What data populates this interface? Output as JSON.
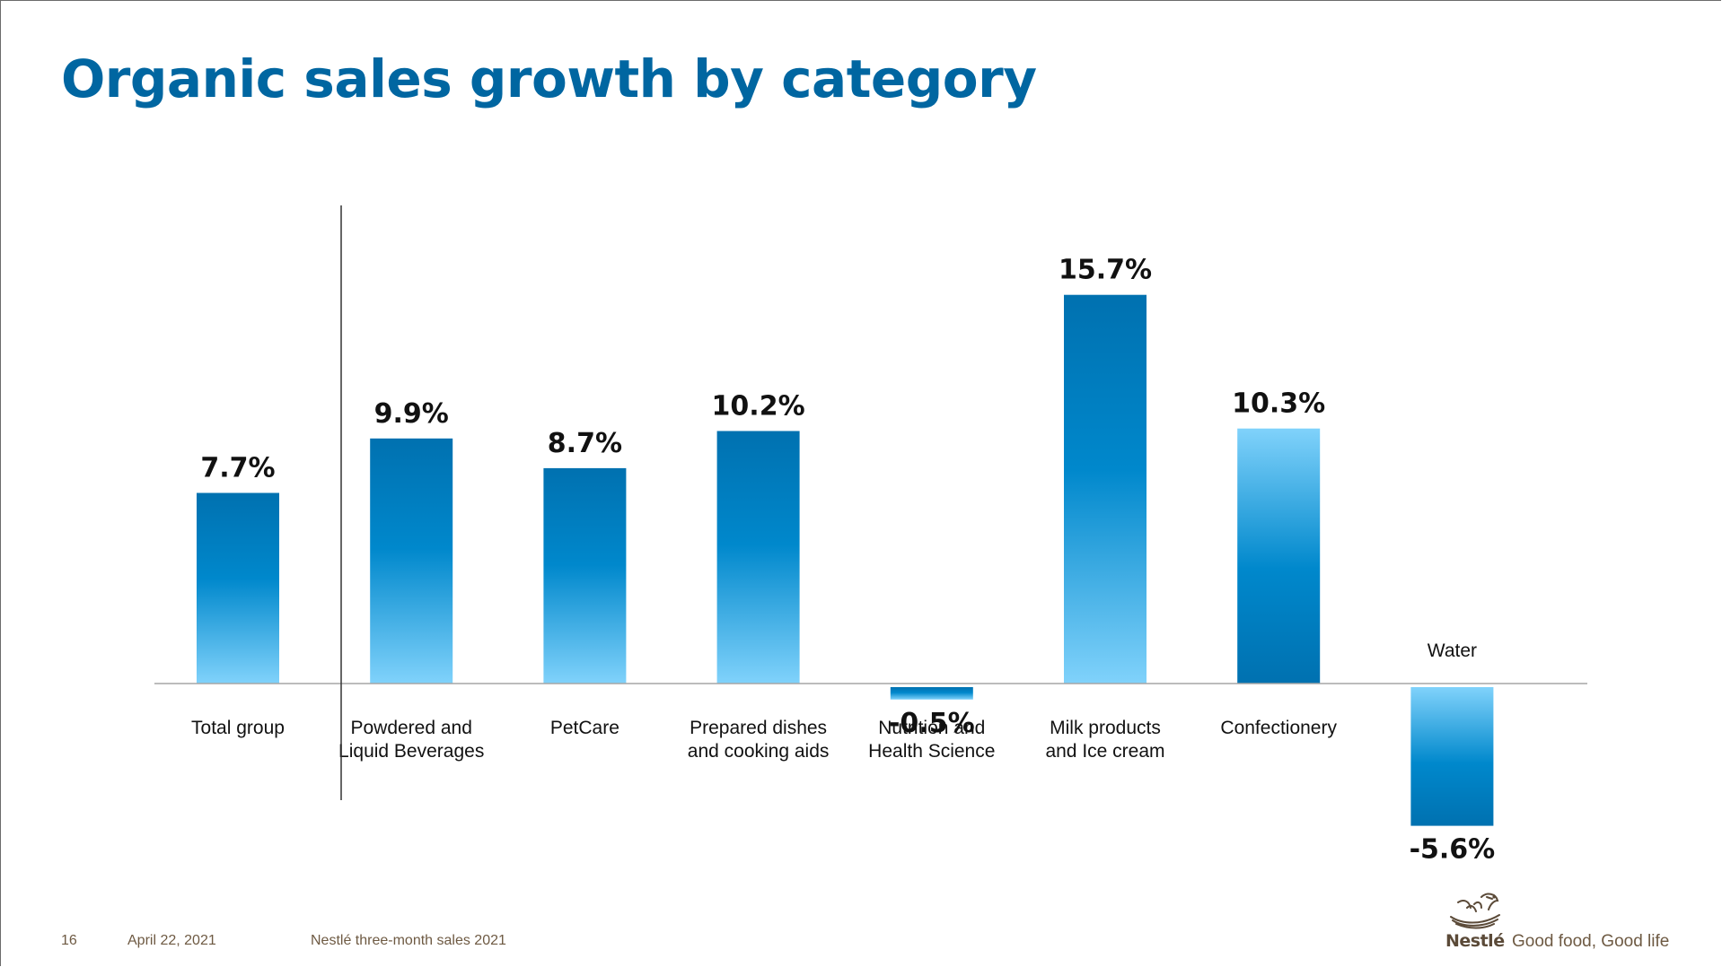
{
  "slide": {
    "title": "Organic sales growth by category",
    "page_number": "16",
    "date": "April 22, 2021",
    "document_name": "Nestlé three-month sales 2021"
  },
  "brand": {
    "wordmark": "Nestlé",
    "tagline": "Good food, Good life",
    "logo_icon": "nest-with-birds-icon"
  },
  "colors": {
    "title": "#0066a1",
    "bar_dark": "#0071b0",
    "bar_mid": "#0088cc",
    "bar_light": "#80d2fb",
    "value_text": "#111111",
    "axis_line": "#a6a6a6",
    "divider_line": "#333333",
    "footer_text": "#6e5a43"
  },
  "chart_data": {
    "type": "bar",
    "title": "Organic sales growth by category",
    "unit": "%",
    "categories": [
      "Total group",
      "Powdered and Liquid Beverages",
      "PetCare",
      "Prepared dishes and cooking aids",
      "Nutrition and Health Science",
      "Milk products and Ice cream",
      "Confectionery",
      "Water"
    ],
    "category_label_lines": [
      [
        "Total group"
      ],
      [
        "Powdered and",
        "Liquid Beverages"
      ],
      [
        "PetCare"
      ],
      [
        "Prepared dishes",
        "and cooking aids"
      ],
      [
        "Nutrition and",
        "Health Science"
      ],
      [
        "Milk products",
        "and Ice cream"
      ],
      [
        "Confectionery"
      ],
      [
        "Water"
      ]
    ],
    "values": [
      7.7,
      9.9,
      8.7,
      10.2,
      -0.5,
      15.7,
      10.3,
      -5.6
    ],
    "value_labels": [
      "7.7%",
      "9.9%",
      "8.7%",
      "10.2%",
      "-0.5%",
      "15.7%",
      "10.3%",
      "-5.6%"
    ],
    "gradient_direction": [
      "dark-top",
      "dark-top",
      "dark-top",
      "dark-top",
      "dark-top",
      "dark-top",
      "dark-bottom",
      "dark-bottom"
    ],
    "ylim": [
      -5.6,
      15.7
    ],
    "xlabel": "",
    "ylabel": "",
    "grid": false,
    "legend": "none",
    "baseline": 0,
    "separator_after_index": 0
  }
}
